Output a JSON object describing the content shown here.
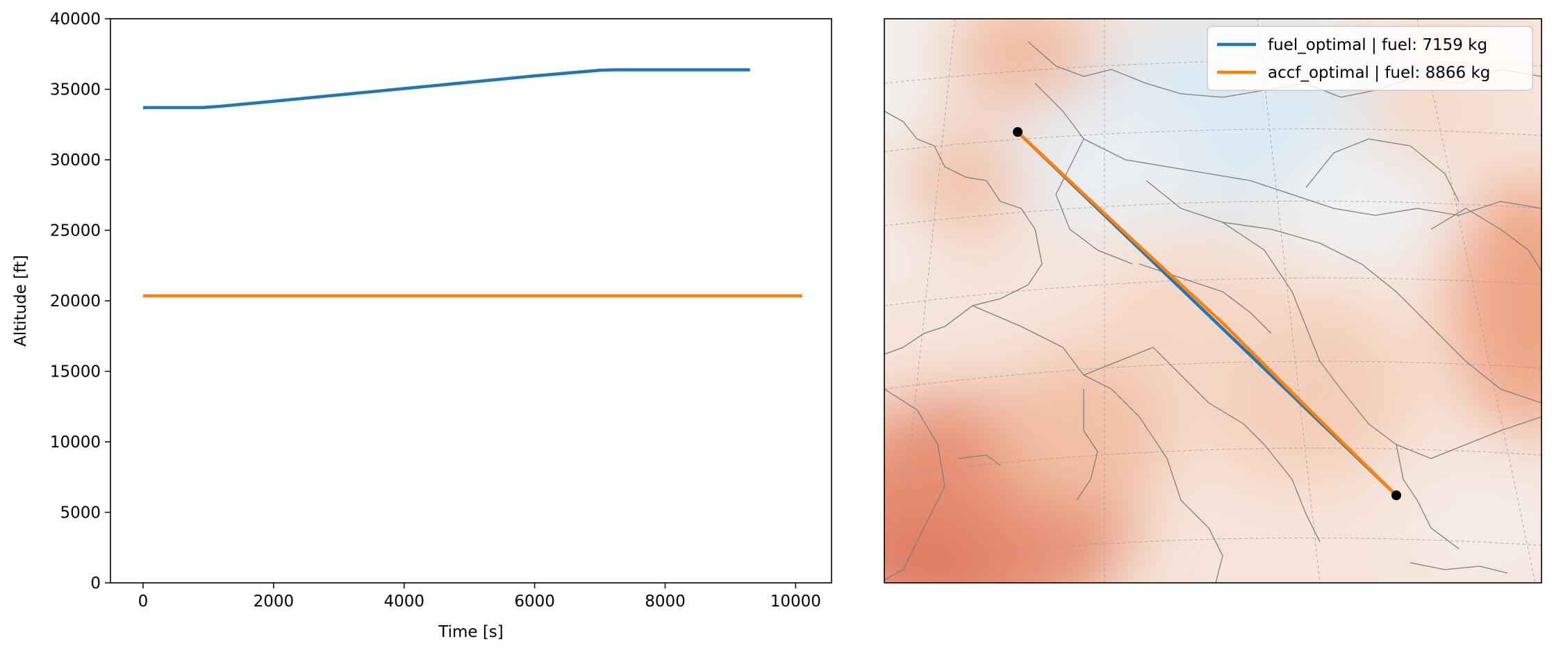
{
  "chart_data": [
    {
      "type": "line",
      "xlabel": "Time [s]",
      "ylabel": "Altitude [ft]",
      "xlim": [
        -500,
        10550
      ],
      "ylim": [
        0,
        40000
      ],
      "xticks": [
        0,
        2000,
        4000,
        6000,
        8000,
        10000
      ],
      "yticks": [
        0,
        5000,
        10000,
        15000,
        20000,
        25000,
        30000,
        35000,
        40000
      ],
      "grid": false,
      "series": [
        {
          "name": "fuel_optimal | fuel: 7159 kg",
          "color": "#1f77b4",
          "x": [
            0,
            900,
            1200,
            2000,
            3000,
            4000,
            5000,
            6000,
            7000,
            7200,
            9300
          ],
          "y": [
            33700,
            33700,
            33800,
            34150,
            34600,
            35050,
            35500,
            35950,
            36350,
            36380,
            36380
          ]
        },
        {
          "name": "accf_optimal | fuel: 8866 kg",
          "color": "#ff7f0e",
          "x": [
            0,
            10100
          ],
          "y": [
            20350,
            20350
          ]
        }
      ]
    },
    {
      "type": "map",
      "projection": "conic",
      "colormap": "diverging blue-white-orange",
      "legend_position": "top-right",
      "route": {
        "endpoints": [
          "origin",
          "destination"
        ],
        "series_colors": [
          "#1f77b4",
          "#ff7f0e"
        ]
      },
      "legend": [
        {
          "label": "fuel_optimal | fuel: 7159 kg",
          "color": "#1f77b4"
        },
        {
          "label": "accf_optimal | fuel: 8866 kg",
          "color": "#ff7f0e"
        }
      ]
    }
  ]
}
